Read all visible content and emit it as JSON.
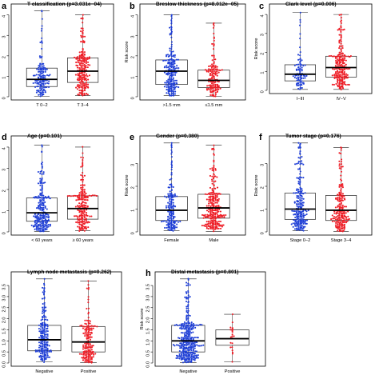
{
  "colors": {
    "group1": "#1f3fd6",
    "group2": "#ee1c25",
    "box": "#222222",
    "median": "#000000"
  },
  "chart_data": [
    {
      "type": "scatter",
      "panel_label": "a",
      "title": "T classification (p=3.031e−04)",
      "ylabel": "",
      "ylim": [
        0,
        4.3
      ],
      "yticks": [
        0,
        1,
        2,
        3,
        4
      ],
      "categories": [
        "T 0−2",
        "T 3−4"
      ],
      "groups": [
        {
          "name": "T 0−2",
          "n": 140,
          "min": 0.02,
          "q1": 0.5,
          "median": 0.85,
          "q3": 1.4,
          "max": 4.2
        },
        {
          "name": "T 3−4",
          "n": 210,
          "min": 0.05,
          "q1": 0.7,
          "median": 1.25,
          "q3": 1.9,
          "max": 4.0
        }
      ]
    },
    {
      "type": "scatter",
      "panel_label": "b",
      "title": "Breslow thickness (p=8.012e−05)",
      "ylabel": "Risk score",
      "ylim": [
        0,
        4.3
      ],
      "yticks": [
        0,
        1,
        2,
        3,
        4
      ],
      "categories": [
        ">1.5 mm",
        "≤1.5 mm"
      ],
      "groups": [
        {
          "name": ">1.5 mm",
          "n": 200,
          "min": 0.05,
          "q1": 0.6,
          "median": 1.25,
          "q3": 1.8,
          "max": 4.0
        },
        {
          "name": "≤1.5 mm",
          "n": 150,
          "min": 0.02,
          "q1": 0.45,
          "median": 0.8,
          "q3": 1.3,
          "max": 3.6
        }
      ]
    },
    {
      "type": "scatter",
      "panel_label": "c",
      "title": "Clark level (p=0.006)",
      "ylabel": "Risk score",
      "ylim": [
        0,
        4.3
      ],
      "yticks": [
        0,
        1,
        2,
        3,
        4
      ],
      "categories": [
        "I−III",
        "IV−V"
      ],
      "groups": [
        {
          "name": "I−III",
          "n": 90,
          "min": 0.05,
          "q1": 0.5,
          "median": 0.85,
          "q3": 1.35,
          "max": 4.1
        },
        {
          "name": "IV−V",
          "n": 220,
          "min": 0.05,
          "q1": 0.7,
          "median": 1.2,
          "q3": 1.8,
          "max": 4.0
        }
      ]
    },
    {
      "type": "scatter",
      "panel_label": "d",
      "title": "Age (p=0.101)",
      "ylabel": "",
      "ylim": [
        0,
        4.3
      ],
      "yticks": [
        0,
        1,
        2,
        3,
        4
      ],
      "categories": [
        "< 60 years",
        "≥ 60 years"
      ],
      "groups": [
        {
          "name": "< 60 years",
          "n": 230,
          "min": 0.02,
          "q1": 0.5,
          "median": 0.9,
          "q3": 1.6,
          "max": 4.1
        },
        {
          "name": "≥ 60 years",
          "n": 200,
          "min": 0.05,
          "q1": 0.6,
          "median": 1.1,
          "q3": 1.7,
          "max": 4.0
        }
      ]
    },
    {
      "type": "scatter",
      "panel_label": "e",
      "title": "Gender (p=0.380)",
      "ylabel": "Risk score",
      "ylim": [
        0,
        4.0
      ],
      "yticks": [
        0,
        1,
        2,
        3
      ],
      "categories": [
        "Female",
        "Male"
      ],
      "groups": [
        {
          "name": "Female",
          "n": 160,
          "min": 0.05,
          "q1": 0.5,
          "median": 0.95,
          "q3": 1.55,
          "max": 3.9
        },
        {
          "name": "Male",
          "n": 260,
          "min": 0.02,
          "q1": 0.6,
          "median": 1.05,
          "q3": 1.65,
          "max": 3.8
        }
      ]
    },
    {
      "type": "scatter",
      "panel_label": "f",
      "title": "Tumor stage (p=0.176)",
      "ylabel": "Risk score",
      "ylim": [
        0,
        4.0
      ],
      "yticks": [
        0,
        1,
        2,
        3
      ],
      "categories": [
        "Stage 0−2",
        "Stage 3−4"
      ],
      "groups": [
        {
          "name": "Stage 0−2",
          "n": 220,
          "min": 0.05,
          "q1": 0.55,
          "median": 1.0,
          "q3": 1.7,
          "max": 3.9
        },
        {
          "name": "Stage 3−4",
          "n": 200,
          "min": 0.02,
          "q1": 0.5,
          "median": 0.95,
          "q3": 1.6,
          "max": 3.7
        }
      ]
    },
    {
      "type": "scatter",
      "panel_label": "",
      "title": "Lymph node metastasis (p=0.262)",
      "ylabel": "",
      "ylim": [
        0,
        3.9
      ],
      "yticks": [
        0.0,
        0.5,
        1.0,
        1.5,
        2.0,
        2.5,
        3.0,
        3.5
      ],
      "categories": [
        "Negative",
        "Positive"
      ],
      "groups": [
        {
          "name": "Negative",
          "n": 190,
          "min": 0.05,
          "q1": 0.55,
          "median": 1.05,
          "q3": 1.7,
          "max": 3.8
        },
        {
          "name": "Positive",
          "n": 170,
          "min": 0.02,
          "q1": 0.5,
          "median": 0.95,
          "q3": 1.65,
          "max": 3.7
        }
      ]
    },
    {
      "type": "scatter",
      "panel_label": "h",
      "title": "Distal metastasis (p=0.801)",
      "ylabel": "Risk score",
      "ylim": [
        0,
        3.9
      ],
      "yticks": [
        0.0,
        0.5,
        1.0,
        1.5,
        2.0,
        2.5,
        3.0,
        3.5
      ],
      "categories": [
        "Negative",
        "Positive"
      ],
      "groups": [
        {
          "name": "Negative",
          "n": 330,
          "min": 0.02,
          "q1": 0.5,
          "median": 1.0,
          "q3": 1.7,
          "max": 3.8
        },
        {
          "name": "Positive",
          "n": 20,
          "min": 0.05,
          "q1": 0.8,
          "median": 1.1,
          "q3": 1.5,
          "max": 2.2
        }
      ]
    }
  ]
}
